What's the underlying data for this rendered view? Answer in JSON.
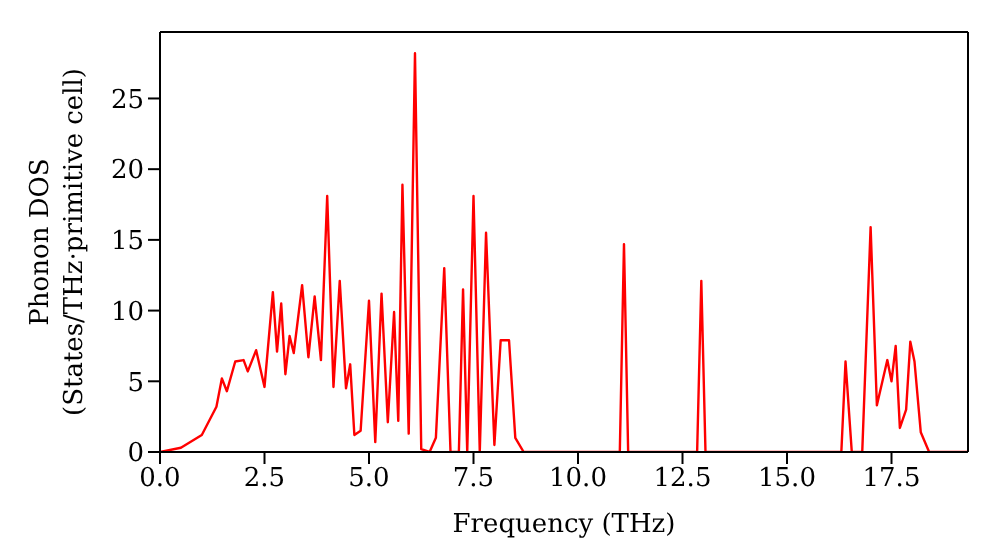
{
  "chart_data": {
    "type": "line",
    "xlabel": "Frequency (THz)",
    "ylabel": "Phonon DOS\n(States/THz·primitive cell)",
    "xlim": [
      0,
      19.33
    ],
    "ylim": [
      0,
      29.7
    ],
    "xticks": [
      {
        "value": 0,
        "label": "0.0"
      },
      {
        "value": 2.5,
        "label": "2.5"
      },
      {
        "value": 5,
        "label": "5.0"
      },
      {
        "value": 7.5,
        "label": "7.5"
      },
      {
        "value": 10,
        "label": "10.0"
      },
      {
        "value": 12.5,
        "label": "12.5"
      },
      {
        "value": 15,
        "label": "15.0"
      },
      {
        "value": 17.5,
        "label": "17.5"
      }
    ],
    "yticks": [
      0,
      5,
      10,
      15,
      20,
      25
    ],
    "marker": "none",
    "line_style": "solid",
    "series": [
      {
        "color": "#ff0000",
        "x": [
          0,
          0.5,
          1.0,
          1.35,
          1.48,
          1.6,
          1.8,
          2.0,
          2.1,
          2.3,
          2.5,
          2.7,
          2.8,
          2.9,
          3.0,
          3.1,
          3.2,
          3.4,
          3.55,
          3.7,
          3.85,
          4.0,
          4.15,
          4.3,
          4.45,
          4.55,
          4.65,
          4.8,
          5.0,
          5.15,
          5.3,
          5.45,
          5.6,
          5.7,
          5.8,
          5.95,
          6.1,
          6.25,
          6.45,
          6.6,
          6.8,
          6.95,
          7.15,
          7.25,
          7.35,
          7.5,
          7.65,
          7.8,
          8.0,
          8.15,
          8.35,
          8.5,
          8.7,
          11.0,
          11.1,
          11.2,
          12.85,
          12.95,
          13.05,
          16.3,
          16.4,
          16.55,
          16.8,
          17.0,
          17.15,
          17.4,
          17.5,
          17.6,
          17.7,
          17.85,
          17.95,
          18.05,
          18.2,
          18.4,
          19.33
        ],
        "values": [
          0,
          0.3,
          1.2,
          3.2,
          5.2,
          4.3,
          6.4,
          6.5,
          5.7,
          7.2,
          4.6,
          11.3,
          7.1,
          10.5,
          5.5,
          8.2,
          7.0,
          11.8,
          6.7,
          11.0,
          6.5,
          18.1,
          4.6,
          12.1,
          4.5,
          6.2,
          1.2,
          1.5,
          10.7,
          0.7,
          11.2,
          2.1,
          9.9,
          2.2,
          18.9,
          1.3,
          28.2,
          0.2,
          0,
          1,
          13.0,
          0,
          0,
          11.5,
          0,
          18.1,
          0,
          15.5,
          0.5,
          7.9,
          7.9,
          1,
          0,
          0,
          14.7,
          0,
          0,
          12.1,
          0,
          0,
          6.4,
          0,
          0,
          15.9,
          3.3,
          6.5,
          5.0,
          7.5,
          1.7,
          3.0,
          7.8,
          6.4,
          1.4,
          0,
          0
        ]
      }
    ]
  }
}
